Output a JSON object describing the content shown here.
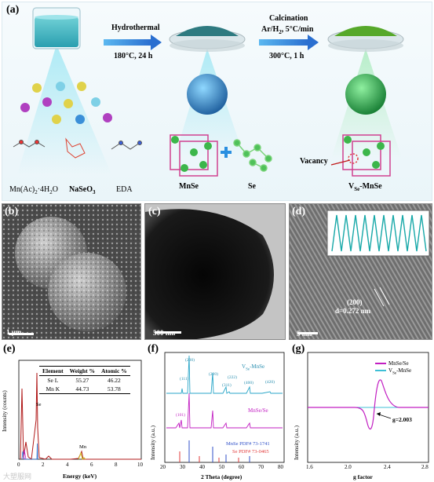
{
  "panel_labels": {
    "a": "(a)",
    "b": "(b)",
    "c": "(c)",
    "d": "(d)",
    "e": "(e)",
    "f": "(f)",
    "g": "(g)"
  },
  "top": {
    "step1_label": "Hydrothermal",
    "step1_cond": "180°C, 24 h",
    "step2_label": "Calcination",
    "step2_gas_main": "Ar/H",
    "step2_gas_sub": "2",
    "step2_gas_rest": ", 5°C/min",
    "step2_cond": "300°C, 1 h",
    "reagent1_pre": "Mn(Ac)",
    "reagent1_sub": "2",
    "reagent1_post": "·4H",
    "reagent1_sub2": "2",
    "reagent1_end": "O",
    "reagent2_pre": "NaSeO",
    "reagent2_sub": "3",
    "reagent3": "EDA",
    "product1": "MnSe",
    "plus": "+",
    "product2": "Se",
    "vacancy": "Vacancy",
    "final_pre": "V",
    "final_sub": "Se",
    "final_post": "-MnSe"
  },
  "micro": {
    "b_scale": "1 μm",
    "c_scale": "500 nm",
    "d_scale": "5 nm",
    "d_plane": "(200)",
    "d_spacing": "d=0.272 nm"
  },
  "edx": {
    "ylabel": "Intensity (counts)",
    "xlabel": "Energy (keV)",
    "xticks": [
      "0",
      "2",
      "4",
      "6",
      "8",
      "10"
    ],
    "peak_se": "Se",
    "peak_mn": "Mn",
    "table_header": [
      "Element",
      "Weight %",
      "Atomic %"
    ],
    "table_rows": [
      [
        "Se L",
        "55.27",
        "46.22"
      ],
      [
        "Mn K",
        "44.73",
        "53.78"
      ]
    ]
  },
  "xrd": {
    "ylabel": "Intensity (a.u.)",
    "xlabel": "2 Theta (degree)",
    "xticks": [
      "20",
      "30",
      "40",
      "50",
      "60",
      "70",
      "80"
    ],
    "legend_top_pre": "V",
    "legend_top_sub": "Se",
    "legend_top_post": "-MnSe",
    "legend_mid": "MnSe/Se",
    "ref1": "MnSe PDF# 73-1741",
    "ref2": "Se  PDF# 73-0465",
    "peaks": [
      "(111)",
      "(200)",
      "(220)",
      "(311)",
      "(222)",
      "(400)",
      "(420)",
      "(101)"
    ]
  },
  "epr": {
    "ylabel": "Intensity (a.u.)",
    "xlabel": "g factor",
    "xticks": [
      "1.6",
      "2.0",
      "2.4",
      "2.8"
    ],
    "legend1": "MnSe/Se",
    "legend2_pre": "V",
    "legend2_sub": "Se",
    "legend2_post": "-MnSe",
    "annotation": "g=2.003"
  },
  "watermark": "大塑服网",
  "colors": {
    "magenta": "#c21fc2",
    "cyan": "#3fbfd6",
    "red": "#e23b3b",
    "blue": "#3050c8",
    "green": "#37b24d"
  }
}
